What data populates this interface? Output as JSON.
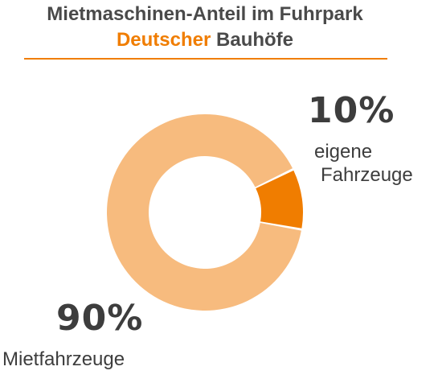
{
  "header": {
    "title_line1": "Mietmaschinen-Anteil im Fuhrpark",
    "title_accent": "Deutscher",
    "title_rest": " Bauhöfe"
  },
  "colors": {
    "accent": "#f07d00",
    "large_slice": "#f7bb7e",
    "small_slice": "#f07d00",
    "text": "#3d3d3d"
  },
  "chart_data": {
    "type": "pie",
    "variant": "donut",
    "title": "Mietmaschinen-Anteil im Fuhrpark Deutscher Bauhöfe",
    "categories": [
      "Mietfahrzeuge",
      "eigene Fahrzeuge"
    ],
    "values": [
      90,
      10
    ],
    "unit": "%",
    "series": [
      {
        "name": "Mietfahrzeuge",
        "value": 90,
        "label": "90%",
        "color": "#f7bb7e"
      },
      {
        "name": "eigene Fahrzeuge",
        "value": 10,
        "label": "10%",
        "color": "#f07d00"
      }
    ]
  },
  "labels": {
    "small_pct": "10%",
    "small_name_line1": "eigene",
    "small_name_line2": "Fahrzeuge",
    "large_pct": "90%",
    "large_name": "Mietfahrzeuge"
  }
}
